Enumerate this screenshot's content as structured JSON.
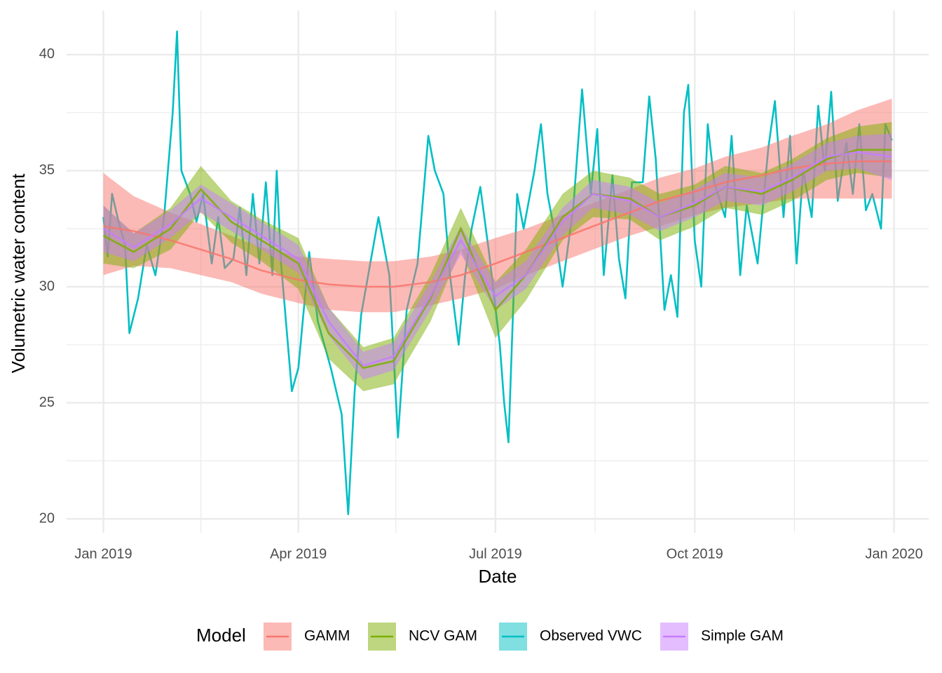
{
  "chart_data": {
    "type": "line",
    "x_label": "Date",
    "y_label": "Volumetric water content",
    "legend_title": "Model",
    "legend_position": "bottom",
    "grid": true,
    "xlim": [
      "2018-12-15",
      "2020-01-17"
    ],
    "ylim": [
      19.4,
      41.9
    ],
    "xticks": [
      {
        "value": "2019-01-01",
        "label": "Jan 2019"
      },
      {
        "value": "2019-04-01",
        "label": "Apr 2019"
      },
      {
        "value": "2019-07-01",
        "label": "Jul 2019"
      },
      {
        "value": "2019-10-01",
        "label": "Oct 2019"
      },
      {
        "value": "2020-01-01",
        "label": "Jan 2020"
      }
    ],
    "xminor": [
      "2019-02-15",
      "2019-05-16",
      "2019-08-16",
      "2019-11-16"
    ],
    "yticks": [
      20,
      25,
      30,
      35,
      40
    ],
    "yminor": [
      22.5,
      27.5,
      32.5,
      37.5
    ],
    "series": [
      {
        "name": "GAMM",
        "color": "#F8766D",
        "x": [
          "2019-01-01",
          "2019-01-15",
          "2019-02-01",
          "2019-02-15",
          "2019-03-01",
          "2019-03-15",
          "2019-04-01",
          "2019-04-15",
          "2019-05-01",
          "2019-05-15",
          "2019-06-01",
          "2019-06-15",
          "2019-07-01",
          "2019-07-15",
          "2019-08-01",
          "2019-08-15",
          "2019-09-01",
          "2019-09-15",
          "2019-10-01",
          "2019-10-15",
          "2019-11-01",
          "2019-11-15",
          "2019-12-01",
          "2019-12-15",
          "2019-12-31"
        ],
        "values": [
          32.6,
          32.4,
          32.0,
          31.6,
          31.2,
          30.7,
          30.3,
          30.1,
          30.0,
          30.0,
          30.2,
          30.5,
          31.0,
          31.5,
          32.1,
          32.6,
          33.2,
          33.7,
          34.1,
          34.5,
          34.8,
          35.1,
          35.3,
          35.4,
          35.4
        ],
        "lower": [
          30.5,
          30.9,
          30.8,
          30.5,
          30.2,
          29.7,
          29.3,
          29.0,
          28.9,
          28.9,
          29.2,
          29.5,
          29.9,
          30.5,
          31.1,
          31.6,
          32.2,
          32.6,
          33.1,
          33.4,
          33.6,
          33.8,
          33.8,
          33.8,
          33.8
        ],
        "upper": [
          34.9,
          33.9,
          33.2,
          32.7,
          32.2,
          31.7,
          31.3,
          31.2,
          31.1,
          31.1,
          31.3,
          31.6,
          32.1,
          32.5,
          33.1,
          33.6,
          34.2,
          34.7,
          35.1,
          35.6,
          36.0,
          36.5,
          37.0,
          37.6,
          38.1
        ]
      },
      {
        "name": "NCV GAM",
        "color": "#7CAE00",
        "x": [
          "2019-01-01",
          "2019-01-15",
          "2019-02-01",
          "2019-02-15",
          "2019-03-01",
          "2019-03-15",
          "2019-04-01",
          "2019-04-15",
          "2019-05-01",
          "2019-05-15",
          "2019-06-01",
          "2019-06-15",
          "2019-07-01",
          "2019-07-15",
          "2019-08-01",
          "2019-08-15",
          "2019-09-01",
          "2019-09-15",
          "2019-10-01",
          "2019-10-15",
          "2019-11-01",
          "2019-11-15",
          "2019-12-01",
          "2019-12-15",
          "2019-12-31"
        ],
        "values": [
          32.2,
          31.5,
          32.5,
          34.2,
          32.8,
          32.0,
          31.0,
          28.0,
          26.5,
          26.8,
          29.5,
          32.5,
          29.0,
          30.5,
          33.0,
          34.0,
          33.8,
          33.0,
          33.5,
          34.3,
          34.0,
          34.6,
          35.5,
          35.9,
          35.9
        ],
        "lower": [
          31.0,
          30.8,
          31.6,
          33.2,
          31.9,
          31.1,
          29.9,
          26.9,
          25.5,
          25.8,
          28.5,
          31.6,
          27.8,
          29.4,
          32.0,
          33.0,
          32.9,
          32.0,
          32.6,
          33.4,
          33.1,
          33.7,
          34.6,
          34.9,
          34.7
        ],
        "upper": [
          33.5,
          32.3,
          33.4,
          35.2,
          33.7,
          32.9,
          32.1,
          29.1,
          27.4,
          27.8,
          30.5,
          33.4,
          30.2,
          31.6,
          34.0,
          35.0,
          34.7,
          34.0,
          34.4,
          35.2,
          34.9,
          35.5,
          36.4,
          36.9,
          37.1
        ]
      },
      {
        "name": "Observed VWC",
        "color": "#00BFC4",
        "x": [
          "2019-01-01",
          "2019-01-03",
          "2019-01-05",
          "2019-01-08",
          "2019-01-11",
          "2019-01-13",
          "2019-01-17",
          "2019-01-21",
          "2019-01-25",
          "2019-01-29",
          "2019-02-02",
          "2019-02-04",
          "2019-02-06",
          "2019-02-10",
          "2019-02-13",
          "2019-02-16",
          "2019-02-20",
          "2019-02-23",
          "2019-02-26",
          "2019-03-02",
          "2019-03-05",
          "2019-03-08",
          "2019-03-11",
          "2019-03-14",
          "2019-03-17",
          "2019-03-20",
          "2019-03-22",
          "2019-03-24",
          "2019-03-29",
          "2019-04-01",
          "2019-04-06",
          "2019-04-10",
          "2019-04-16",
          "2019-04-21",
          "2019-04-24",
          "2019-04-27",
          "2019-04-30",
          "2019-05-08",
          "2019-05-13",
          "2019-05-17",
          "2019-05-21",
          "2019-05-26",
          "2019-05-31",
          "2019-06-03",
          "2019-06-07",
          "2019-06-10",
          "2019-06-14",
          "2019-06-17",
          "2019-06-20",
          "2019-06-24",
          "2019-06-28",
          "2019-07-03",
          "2019-07-05",
          "2019-07-07",
          "2019-07-11",
          "2019-07-14",
          "2019-07-19",
          "2019-07-22",
          "2019-07-25",
          "2019-07-29",
          "2019-08-01",
          "2019-08-06",
          "2019-08-10",
          "2019-08-14",
          "2019-08-17",
          "2019-08-20",
          "2019-08-24",
          "2019-08-27",
          "2019-08-30",
          "2019-09-02",
          "2019-09-07",
          "2019-09-10",
          "2019-09-13",
          "2019-09-17",
          "2019-09-20",
          "2019-09-23",
          "2019-09-26",
          "2019-09-28",
          "2019-10-01",
          "2019-10-04",
          "2019-10-07",
          "2019-10-10",
          "2019-10-15",
          "2019-10-18",
          "2019-10-22",
          "2019-10-25",
          "2019-10-30",
          "2019-11-04",
          "2019-11-07",
          "2019-11-11",
          "2019-11-14",
          "2019-11-17",
          "2019-11-20",
          "2019-11-24",
          "2019-11-27",
          "2019-11-30",
          "2019-12-03",
          "2019-12-06",
          "2019-12-10",
          "2019-12-13",
          "2019-12-16",
          "2019-12-19",
          "2019-12-22",
          "2019-12-26",
          "2019-12-28",
          "2019-12-31"
        ],
        "values": [
          33.0,
          31.3,
          34.0,
          32.8,
          31.8,
          28.0,
          29.5,
          31.8,
          30.5,
          33.0,
          37.5,
          41.0,
          35.0,
          34.0,
          32.8,
          34.0,
          31.0,
          33.0,
          30.8,
          31.2,
          33.4,
          30.5,
          34.0,
          31.0,
          34.5,
          30.5,
          35.0,
          31.0,
          25.5,
          26.5,
          31.5,
          28.5,
          26.5,
          24.5,
          20.2,
          25.5,
          28.8,
          33.0,
          30.5,
          23.5,
          29.0,
          31.0,
          36.5,
          35.0,
          34.0,
          30.5,
          27.5,
          30.5,
          32.5,
          34.3,
          31.5,
          27.5,
          25.0,
          23.3,
          34.0,
          32.5,
          35.0,
          37.0,
          34.0,
          32.0,
          30.0,
          33.5,
          38.5,
          34.0,
          36.8,
          30.5,
          34.8,
          31.2,
          29.5,
          34.5,
          34.5,
          38.2,
          35.5,
          29.0,
          30.5,
          28.7,
          37.5,
          38.7,
          32.0,
          30.0,
          37.0,
          34.5,
          33.0,
          36.5,
          30.5,
          33.5,
          31.0,
          36.0,
          38.0,
          33.0,
          36.5,
          31.0,
          35.0,
          33.0,
          37.8,
          35.0,
          38.4,
          33.7,
          36.2,
          34.0,
          37.0,
          33.3,
          34.0,
          32.5,
          37.0,
          36.3
        ]
      },
      {
        "name": "Simple GAM",
        "color": "#C77CFF",
        "x": [
          "2019-01-01",
          "2019-01-15",
          "2019-02-01",
          "2019-02-15",
          "2019-03-01",
          "2019-03-15",
          "2019-04-01",
          "2019-04-15",
          "2019-05-01",
          "2019-05-15",
          "2019-06-01",
          "2019-06-15",
          "2019-07-01",
          "2019-07-15",
          "2019-08-01",
          "2019-08-15",
          "2019-09-01",
          "2019-09-15",
          "2019-10-01",
          "2019-10-15",
          "2019-11-01",
          "2019-11-15",
          "2019-12-01",
          "2019-12-15",
          "2019-12-31"
        ],
        "values": [
          32.5,
          31.7,
          32.7,
          33.8,
          33.0,
          32.2,
          31.2,
          28.5,
          26.6,
          27.0,
          29.6,
          32.0,
          29.6,
          30.5,
          32.8,
          34.0,
          33.7,
          33.0,
          33.6,
          34.3,
          34.1,
          34.7,
          35.6,
          35.8,
          35.6
        ],
        "lower": [
          31.5,
          31.1,
          32.1,
          33.2,
          32.4,
          31.6,
          30.6,
          27.9,
          26.0,
          26.4,
          29.0,
          31.4,
          29.0,
          29.9,
          32.2,
          33.4,
          33.1,
          32.4,
          33.0,
          33.7,
          33.5,
          34.1,
          35.0,
          35.1,
          34.6
        ],
        "upper": [
          33.5,
          32.3,
          33.3,
          34.4,
          33.6,
          32.8,
          31.8,
          29.1,
          27.2,
          27.6,
          30.2,
          32.6,
          30.2,
          31.1,
          33.4,
          34.6,
          34.3,
          33.6,
          34.2,
          34.9,
          34.7,
          35.3,
          36.2,
          36.5,
          36.6
        ]
      }
    ]
  }
}
